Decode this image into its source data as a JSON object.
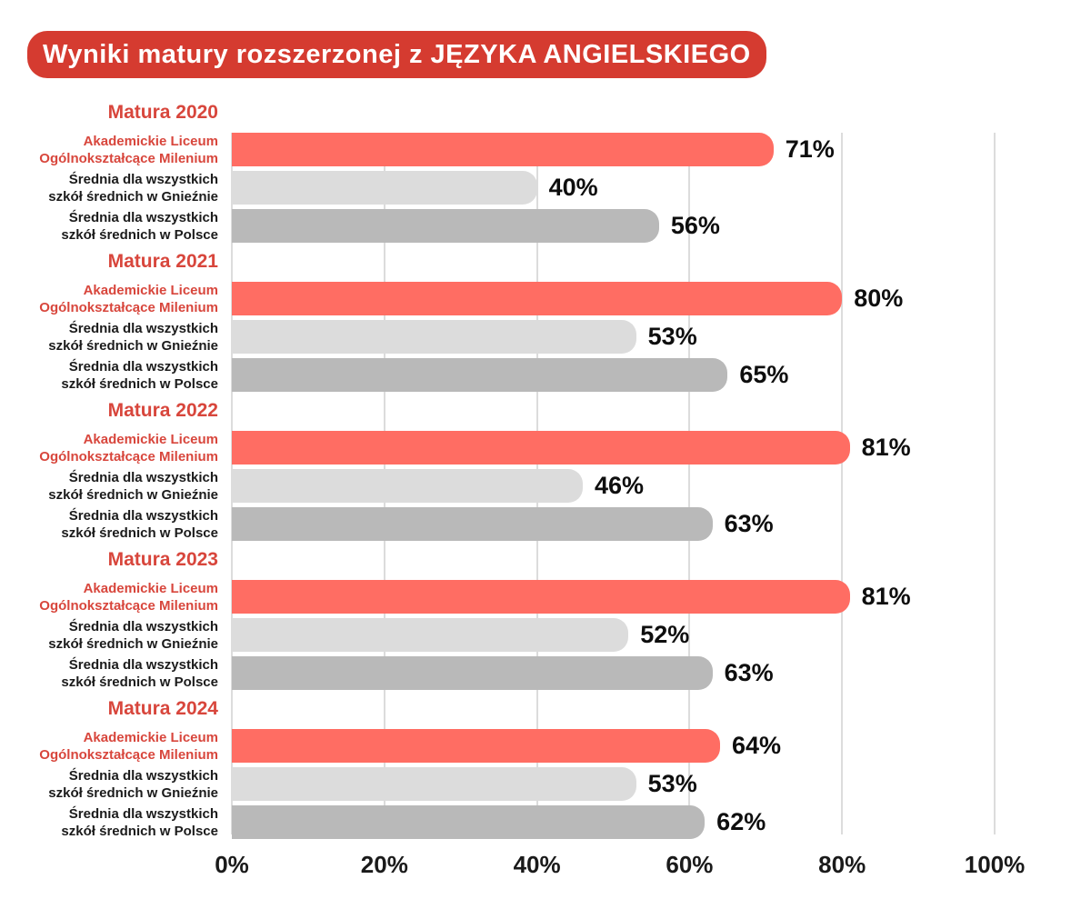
{
  "title": "Wyniki matury rozszerzonej z JĘZYKA ANGIELSKIEGO",
  "colors": {
    "banner_bg": "#D53B30",
    "banner_text": "#FFFFFF",
    "accent_text": "#D8463C",
    "grid_line": "#DCDCDC",
    "value_text": "#0E0E0E",
    "label_text": "#1B1B1B"
  },
  "chart_data": {
    "type": "bar",
    "orientation": "horizontal",
    "title": "Wyniki matury rozszerzonej z JĘZYKA ANGIELSKIEGO",
    "groups": [
      "Matura 2020",
      "Matura 2021",
      "Matura 2022",
      "Matura 2023",
      "Matura 2024"
    ],
    "series": [
      {
        "name": "Akademickie Liceum Ogólnokształcące Milenium",
        "label_lines": [
          "Akademickie Liceum",
          "Ogólnokształcące Milenium"
        ],
        "color": "#FF6D63",
        "label_color": "#D8463C",
        "values": [
          71,
          80,
          81,
          81,
          64
        ]
      },
      {
        "name": "Średnia dla wszystkich szkół średnich w Gnieźnie",
        "label_lines": [
          "Średnia dla wszystkich",
          "szkół średnich w Gnieźnie"
        ],
        "color": "#DCDCDC",
        "label_color": "#1B1B1B",
        "values": [
          40,
          53,
          46,
          52,
          53
        ]
      },
      {
        "name": "Średnia dla wszystkich szkół średnich w Polsce",
        "label_lines": [
          "Średnia dla wszystkich",
          "szkół średnich w Polsce"
        ],
        "color": "#B9B9B9",
        "label_color": "#1B1B1B",
        "values": [
          56,
          65,
          63,
          63,
          62
        ]
      }
    ],
    "x_ticks": [
      "0%",
      "20%",
      "40%",
      "60%",
      "80%",
      "100%"
    ],
    "xlim": [
      0,
      100
    ],
    "value_suffix": "%",
    "grid": true,
    "legend_position": "none"
  }
}
